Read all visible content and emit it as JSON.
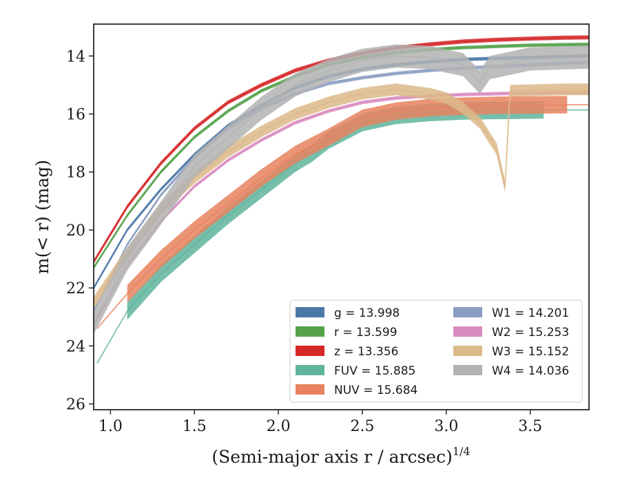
{
  "chart_data": {
    "type": "line",
    "title": "",
    "xlabel": "(Semi-major axis r / arcsec)",
    "xlabel_exponent": "1/4",
    "ylabel": "m(< r) (mag)",
    "xlim": [
      0.9,
      3.85
    ],
    "ylim": [
      26.2,
      12.9
    ],
    "y_inverted": true,
    "grid": false,
    "legend_placement": "lower-right",
    "legend_columns": 2,
    "x_ticks": [
      1.0,
      1.5,
      2.0,
      2.5,
      3.0,
      3.5
    ],
    "x_tick_labels": [
      "1.0",
      "1.5",
      "2.0",
      "2.5",
      "3.0",
      "3.5"
    ],
    "y_ticks": [
      14,
      16,
      18,
      20,
      22,
      24,
      26
    ],
    "y_tick_labels": [
      "14",
      "16",
      "18",
      "20",
      "22",
      "24",
      "26"
    ],
    "series": [
      {
        "name": "g",
        "legend_label": "g = 13.998",
        "color": "#4c78a8",
        "x": [
          0.9,
          1.1,
          1.3,
          1.5,
          1.7,
          1.9,
          2.1,
          2.3,
          2.5,
          2.7,
          2.9,
          3.1,
          3.3,
          3.5,
          3.7,
          3.85
        ],
        "y": [
          22.0,
          20.0,
          18.6,
          17.4,
          16.4,
          15.7,
          15.1,
          14.7,
          14.45,
          14.3,
          14.2,
          14.12,
          14.08,
          14.05,
          14.02,
          14.0
        ],
        "band_halfwidth": 0.06,
        "extension_from_x": 3.25
      },
      {
        "name": "r",
        "legend_label": "r = 13.599",
        "color": "#54a24b",
        "x": [
          0.9,
          1.1,
          1.3,
          1.5,
          1.7,
          1.9,
          2.1,
          2.3,
          2.5,
          2.7,
          2.9,
          3.1,
          3.3,
          3.5,
          3.7,
          3.85
        ],
        "y": [
          21.3,
          19.5,
          18.0,
          16.8,
          15.9,
          15.2,
          14.7,
          14.3,
          14.05,
          13.88,
          13.78,
          13.71,
          13.67,
          13.63,
          13.61,
          13.6
        ],
        "band_halfwidth": 0.06,
        "extension_from_x": 3.3
      },
      {
        "name": "z",
        "legend_label": "z = 13.356",
        "color": "#d62728",
        "x": [
          0.9,
          1.1,
          1.3,
          1.5,
          1.7,
          1.9,
          2.1,
          2.3,
          2.5,
          2.7,
          2.9,
          3.1,
          3.3,
          3.5,
          3.7,
          3.85
        ],
        "y": [
          21.1,
          19.2,
          17.7,
          16.5,
          15.6,
          15.0,
          14.5,
          14.15,
          13.9,
          13.72,
          13.6,
          13.5,
          13.44,
          13.4,
          13.37,
          13.36
        ],
        "band_halfwidth": 0.07,
        "extension_from_x": 3.35
      },
      {
        "name": "FUV",
        "legend_label": "FUV = 15.885",
        "color": "#5fb49c",
        "x": [
          0.92,
          1.1,
          1.3,
          1.5,
          1.7,
          1.9,
          2.1,
          2.2,
          2.3,
          2.5,
          2.7,
          2.9,
          3.1,
          3.3,
          3.58,
          3.85
        ],
        "y": [
          24.6,
          22.8,
          21.5,
          20.5,
          19.5,
          18.6,
          17.7,
          17.35,
          16.9,
          16.3,
          16.05,
          15.95,
          15.9,
          15.88,
          15.86,
          15.86
        ],
        "band_halfwidth": 0.3,
        "band_x_range": [
          1.1,
          3.58
        ]
      },
      {
        "name": "NUV",
        "legend_label": "NUV = 15.684",
        "color": "#e8825f",
        "x": [
          0.92,
          1.1,
          1.3,
          1.5,
          1.7,
          1.9,
          2.1,
          2.3,
          2.5,
          2.7,
          2.9,
          3.1,
          3.3,
          3.5,
          3.72,
          3.85
        ],
        "y": [
          23.4,
          22.2,
          21.0,
          20.0,
          19.1,
          18.2,
          17.4,
          16.8,
          16.15,
          15.9,
          15.78,
          15.73,
          15.7,
          15.69,
          15.68,
          15.68
        ],
        "band_halfwidth": 0.3,
        "band_x_range": [
          1.1,
          3.72
        ]
      },
      {
        "name": "W1",
        "legend_label": "W1 = 14.201",
        "color": "#8b9dc3",
        "x": [
          0.9,
          1.1,
          1.3,
          1.5,
          1.7,
          1.9,
          2.1,
          2.3,
          2.5,
          2.7,
          2.9,
          3.1,
          3.3,
          3.5,
          3.7,
          3.85
        ],
        "y": [
          22.8,
          20.5,
          18.8,
          17.5,
          16.5,
          15.8,
          15.3,
          14.95,
          14.75,
          14.6,
          14.5,
          14.42,
          14.36,
          14.31,
          14.25,
          14.22
        ],
        "band_halfwidth": 0.06
      },
      {
        "name": "W2",
        "legend_label": "W2 = 15.253",
        "color": "#d98cc0",
        "x": [
          0.9,
          1.1,
          1.3,
          1.5,
          1.7,
          1.9,
          2.1,
          2.3,
          2.5,
          2.7,
          2.9,
          3.1,
          3.3,
          3.5,
          3.7,
          3.85
        ],
        "y": [
          23.3,
          21.2,
          19.7,
          18.5,
          17.6,
          16.9,
          16.3,
          15.9,
          15.6,
          15.45,
          15.38,
          15.33,
          15.3,
          15.28,
          15.26,
          15.25
        ],
        "band_halfwidth": 0.06
      },
      {
        "name": "W3",
        "legend_label": "W3 = 15.152",
        "color": "#dcb98a",
        "x": [
          0.9,
          1.1,
          1.3,
          1.5,
          1.7,
          1.9,
          2.1,
          2.3,
          2.5,
          2.7,
          2.9,
          3.0,
          3.1,
          3.2,
          3.3,
          3.35,
          3.38,
          3.5,
          3.7,
          3.85
        ],
        "y": [
          22.5,
          20.8,
          19.3,
          18.2,
          17.3,
          16.6,
          16.0,
          15.6,
          15.3,
          15.15,
          15.3,
          15.45,
          15.8,
          16.3,
          17.2,
          18.5,
          15.2,
          15.18,
          15.15,
          15.15
        ],
        "band_halfwidth": 0.2
      },
      {
        "name": "W4",
        "legend_label": "W4 = 14.036",
        "color": "#b3b3b3",
        "x": [
          0.9,
          1.1,
          1.29,
          1.5,
          1.7,
          1.9,
          2.1,
          2.3,
          2.5,
          2.7,
          2.9,
          3.1,
          3.2,
          3.26,
          3.5,
          3.85
        ],
        "y": [
          23.2,
          21.0,
          19.5,
          17.8,
          16.8,
          15.8,
          15.0,
          14.5,
          14.15,
          14.0,
          14.05,
          14.3,
          14.9,
          14.4,
          14.1,
          14.04
        ],
        "band_halfwidth": 0.4
      }
    ]
  }
}
